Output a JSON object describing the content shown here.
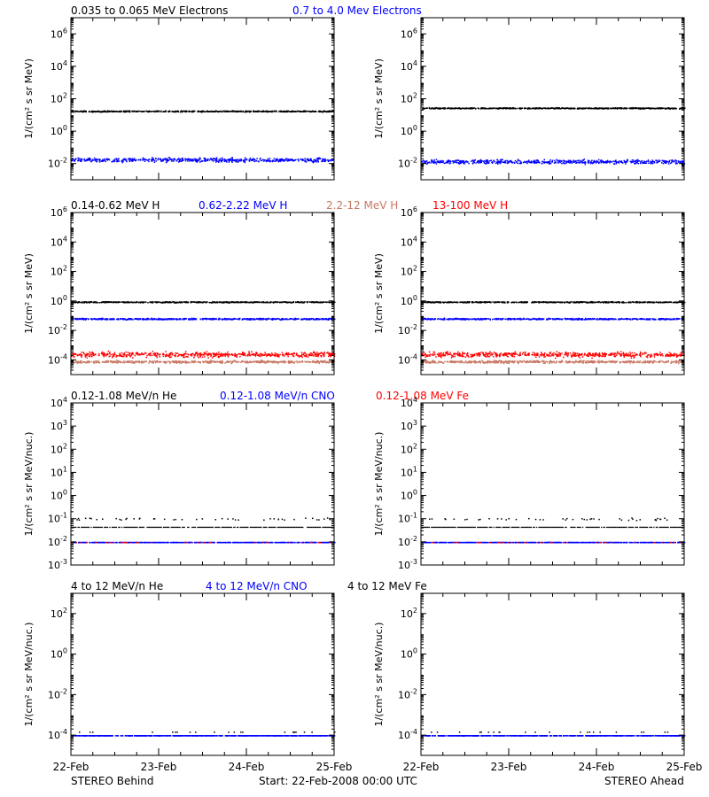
{
  "colors": {
    "black": "#000000",
    "blue": "#0000ff",
    "salmon": "#c87864",
    "red": "#ff0000"
  },
  "footer": {
    "left": "STEREO Behind",
    "center": "Start: 22-Feb-2008 00:00 UTC",
    "right": "STEREO Ahead"
  },
  "chart_data": [
    {
      "type": "scatter",
      "row_title": [
        "0.035 to 0.065 MeV Electrons",
        "0.7 to 4.0 Mev Electrons"
      ],
      "ylabel": "1/(cm² s sr MeV)",
      "yscale": "log",
      "ylim": [
        0.001,
        10000000
      ],
      "yticks": [
        "10^6",
        "10^4",
        "10^2",
        "10^0",
        "10^-2"
      ],
      "x": {
        "type": "date",
        "range": [
          "22-Feb",
          "25-Feb"
        ],
        "ticks": [
          "22-Feb",
          "23-Feb",
          "24-Feb",
          "25-Feb"
        ]
      },
      "panels": [
        {
          "spacecraft": "STEREO Behind",
          "series": [
            {
              "name": "0.035 to 0.065 MeV Electrons",
              "color": "black",
              "level": 18,
              "spread": 0.05
            },
            {
              "name": "0.7 to 4.0 Mev Electrons",
              "color": "blue",
              "level": 0.018,
              "spread": 0.18
            }
          ]
        },
        {
          "spacecraft": "STEREO Ahead",
          "series": [
            {
              "name": "0.035 to 0.065 MeV Electrons",
              "color": "black",
              "level": 28,
              "spread": 0.05
            },
            {
              "name": "0.7 to 4.0 Mev Electrons",
              "color": "blue",
              "level": 0.014,
              "spread": 0.18
            }
          ]
        }
      ]
    },
    {
      "type": "scatter",
      "row_title": [
        "0.14-0.62 MeV H",
        "0.62-2.22 MeV H",
        "2.2-12 MeV H",
        "13-100 MeV H"
      ],
      "ylabel": "1/(cm² s sr MeV)",
      "yscale": "log",
      "ylim": [
        1e-05,
        1000000
      ],
      "yticks": [
        "10^6",
        "10^4",
        "10^2",
        "10^0",
        "10^-2",
        "10^-4"
      ],
      "x": {
        "type": "date",
        "range": [
          "22-Feb",
          "25-Feb"
        ],
        "ticks": [
          "22-Feb",
          "23-Feb",
          "24-Feb",
          "25-Feb"
        ]
      },
      "panels": [
        {
          "spacecraft": "STEREO Behind",
          "series": [
            {
              "name": "0.14-0.62 MeV H",
              "color": "black",
              "level": 0.9,
              "spread": 0.05
            },
            {
              "name": "0.62-2.22 MeV H",
              "color": "blue",
              "level": 0.065,
              "spread": 0.07
            },
            {
              "name": "13-100 MeV H",
              "color": "red",
              "level": 0.00025,
              "spread": 0.25
            },
            {
              "name": "2.2-12 MeV H",
              "color": "salmon",
              "level": 8e-05,
              "spread": 0.12
            }
          ]
        },
        {
          "spacecraft": "STEREO Ahead",
          "series": [
            {
              "name": "0.14-0.62 MeV H",
              "color": "black",
              "level": 0.9,
              "spread": 0.05
            },
            {
              "name": "0.62-2.22 MeV H",
              "color": "blue",
              "level": 0.065,
              "spread": 0.07
            },
            {
              "name": "13-100 MeV H",
              "color": "red",
              "level": 0.00025,
              "spread": 0.25
            },
            {
              "name": "2.2-12 MeV H",
              "color": "salmon",
              "level": 8e-05,
              "spread": 0.12
            }
          ]
        }
      ]
    },
    {
      "type": "scatter",
      "row_title": [
        "0.12-1.08 MeV/n He",
        "0.12-1.08 MeV/n CNO",
        "0.12-1.08 MeV Fe"
      ],
      "ylabel": "1/(cm² s sr MeV/nuc.)",
      "yscale": "log",
      "ylim": [
        0.001,
        10000
      ],
      "yticks": [
        "10^4",
        "10^3",
        "10^2",
        "10^1",
        "10^0",
        "10^-1",
        "10^-2",
        "10^-3"
      ],
      "x": {
        "type": "date",
        "range": [
          "22-Feb",
          "25-Feb"
        ],
        "ticks": [
          "22-Feb",
          "23-Feb",
          "24-Feb",
          "25-Feb"
        ]
      },
      "panels": [
        {
          "spacecraft": "STEREO Behind",
          "series": [
            {
              "name": "0.12-1.08 MeV/n He",
              "color": "black",
              "level": 0.045,
              "upper": 0.1,
              "sparse": true
            },
            {
              "name": "0.12-1.08 MeV/n CNO",
              "color": "blue",
              "level": 0.01
            },
            {
              "name": "0.12-1.08 MeV Fe",
              "color": "red",
              "level": 0.01,
              "sparse": true
            }
          ]
        },
        {
          "spacecraft": "STEREO Ahead",
          "series": [
            {
              "name": "0.12-1.08 MeV/n He",
              "color": "black",
              "level": 0.045,
              "upper": 0.1,
              "sparse": true
            },
            {
              "name": "0.12-1.08 MeV/n CNO",
              "color": "blue",
              "level": 0.01
            },
            {
              "name": "0.12-1.08 MeV Fe",
              "color": "red",
              "level": 0.01,
              "sparse": true
            }
          ]
        }
      ]
    },
    {
      "type": "scatter",
      "row_title": [
        "4 to 12 MeV/n He",
        "4 to 12 MeV/n CNO",
        "4 to 12 MeV Fe"
      ],
      "ylabel": "1/(cm² s sr MeV/nuc.)",
      "yscale": "log",
      "ylim": [
        1e-05,
        1000
      ],
      "yticks": [
        "10^2",
        "10^0",
        "10^-2",
        "10^-4"
      ],
      "x": {
        "type": "date",
        "range": [
          "22-Feb",
          "25-Feb"
        ],
        "ticks": [
          "22-Feb",
          "23-Feb",
          "24-Feb",
          "25-Feb"
        ]
      },
      "panels": [
        {
          "spacecraft": "STEREO Behind",
          "series": [
            {
              "name": "4 to 12 MeV/n CNO",
              "color": "blue",
              "level": 0.0001
            },
            {
              "name": "4 to 12 MeV/n He",
              "color": "black",
              "level": 0.00015,
              "sparse": true
            }
          ]
        },
        {
          "spacecraft": "STEREO Ahead",
          "series": [
            {
              "name": "4 to 12 MeV/n CNO",
              "color": "blue",
              "level": 0.0001
            },
            {
              "name": "4 to 12 MeV/n He",
              "color": "black",
              "level": 0.00015,
              "sparse": true
            }
          ]
        }
      ]
    }
  ]
}
